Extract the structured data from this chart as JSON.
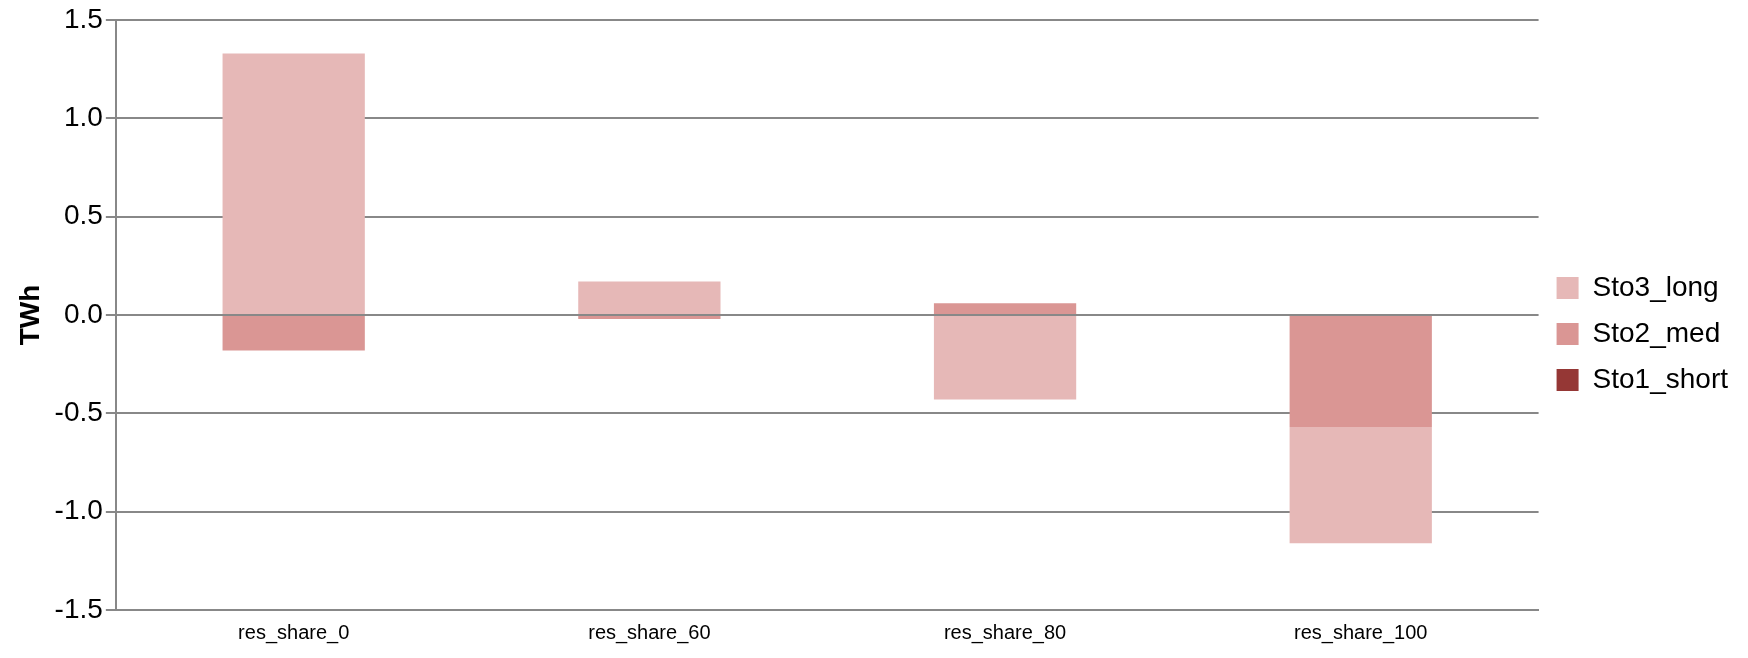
{
  "chart_data": {
    "type": "bar",
    "ylabel": "TWh",
    "categories": [
      "res_share_0",
      "res_share_60",
      "res_share_80",
      "res_share_100"
    ],
    "series": [
      {
        "name": "Sto1_short",
        "color": "#953735",
        "values": [
          0,
          0,
          0,
          0
        ]
      },
      {
        "name": "Sto2_med",
        "color": "#da9694",
        "values": [
          -0.18,
          -0.02,
          0.06,
          -0.57
        ]
      },
      {
        "name": "Sto3_long",
        "color": "#e6b8b7",
        "values": [
          1.33,
          0.17,
          -0.43,
          -0.59
        ]
      }
    ],
    "stacked": true,
    "ylim": [
      -1.5,
      1.5
    ],
    "yticks": [
      {
        "value": -1.5,
        "label": "-1.5"
      },
      {
        "value": -1,
        "label": "-1.0"
      },
      {
        "value": -0.5,
        "label": "-0.5"
      },
      {
        "value": 0,
        "label": "0.0"
      },
      {
        "value": 0.5,
        "label": "0.5"
      },
      {
        "value": 1,
        "label": "1.0"
      },
      {
        "value": 1.5,
        "label": "1.5"
      }
    ],
    "grid": "y",
    "legend": "right"
  }
}
